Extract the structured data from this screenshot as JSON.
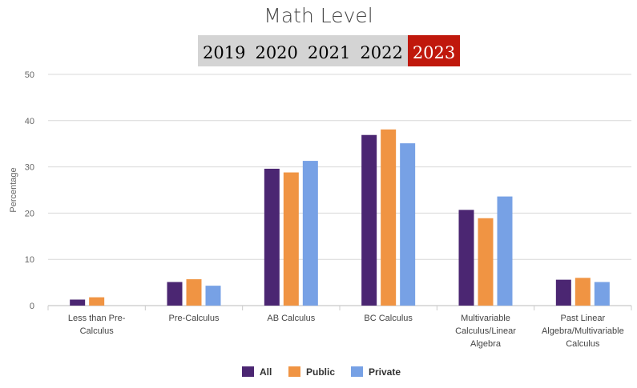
{
  "title": "Math Level",
  "years": [
    "2019",
    "2020",
    "2021",
    "2022",
    "2023"
  ],
  "selected_year": "2023",
  "colors": {
    "All": "#4b2672",
    "Public": "#f09443",
    "Private": "#77a1e5",
    "active_tab": "#c0180c"
  },
  "chart_data": {
    "type": "bar",
    "title": "Math Level",
    "ylabel": "Percentage",
    "xlabel": "",
    "ylim": [
      0,
      50
    ],
    "yticks": [
      0,
      10,
      20,
      30,
      40,
      50
    ],
    "grid": true,
    "legend_position": "bottom",
    "categories": [
      [
        "Less than Pre-",
        "Calculus"
      ],
      [
        "Pre-Calculus"
      ],
      [
        "AB Calculus"
      ],
      [
        "BC Calculus"
      ],
      [
        "Multivariable",
        "Calculus/Linear",
        "Algebra"
      ],
      [
        "Past Linear",
        "Algebra/Multivariable",
        "Calculus"
      ]
    ],
    "series": [
      {
        "name": "All",
        "values": [
          1.3,
          5.1,
          29.6,
          36.9,
          20.7,
          5.6
        ]
      },
      {
        "name": "Public",
        "values": [
          1.8,
          5.7,
          28.8,
          38.1,
          18.9,
          6.0
        ]
      },
      {
        "name": "Private",
        "values": [
          0,
          4.3,
          31.3,
          35.1,
          23.6,
          5.1
        ]
      }
    ]
  }
}
